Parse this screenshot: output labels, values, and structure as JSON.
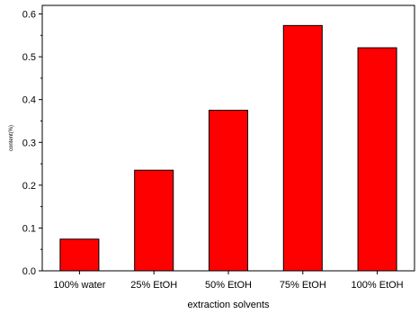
{
  "chart_data": {
    "type": "bar",
    "categories": [
      "100% water",
      "25% EtOH",
      "50% EtOH",
      "75% EtOH",
      "100% EtOH"
    ],
    "values": [
      0.074,
      0.235,
      0.375,
      0.573,
      0.521
    ],
    "xlabel": "extraction solvents",
    "ylabel": "content(%)",
    "ylim": [
      0,
      0.62
    ],
    "yticks": [
      0.0,
      0.1,
      0.2,
      0.3,
      0.4,
      0.5,
      0.6
    ],
    "ytick_labels": [
      "0.0",
      "0.1",
      "0.2",
      "0.3",
      "0.4",
      "0.5",
      "0.6"
    ],
    "grid": false,
    "bar_color": "#ff0000",
    "bar_edge_color": "#000000"
  }
}
